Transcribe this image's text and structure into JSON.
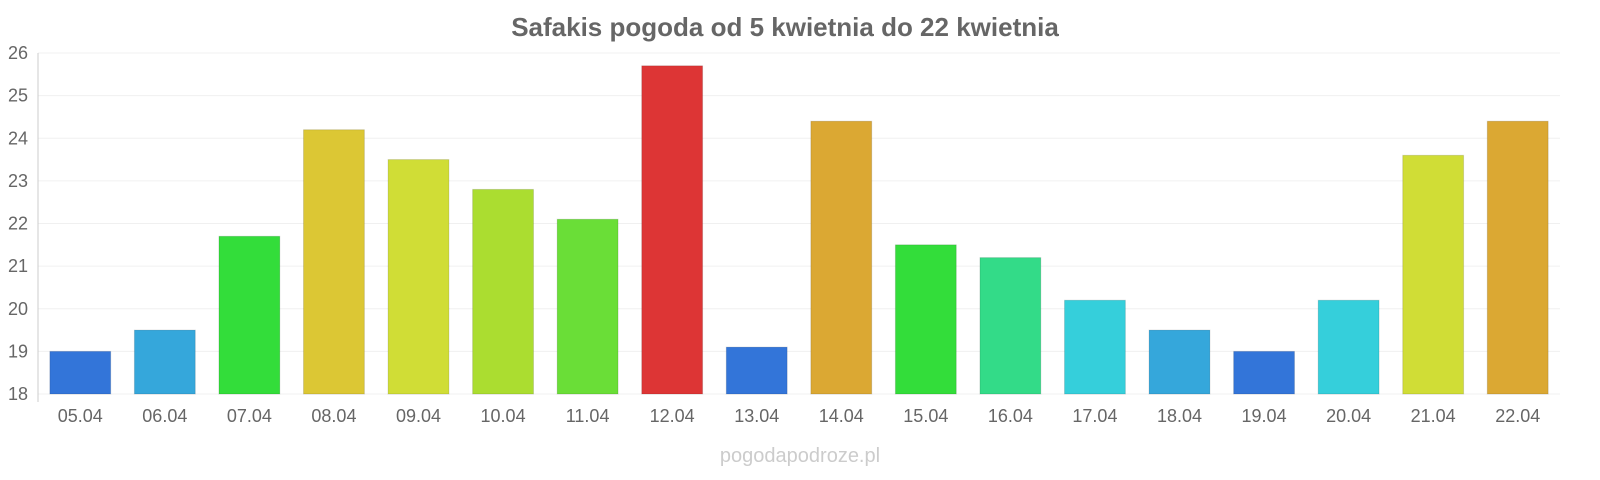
{
  "chart_data": {
    "type": "bar",
    "title": "Safakis pogoda od 5 kwietnia do 22 kwietnia",
    "xlabel": "",
    "ylabel": "",
    "ylim": [
      18,
      26
    ],
    "yticks": [
      18,
      19,
      20,
      21,
      22,
      23,
      24,
      25,
      26
    ],
    "grid": true,
    "categories": [
      "05.04",
      "06.04",
      "07.04",
      "08.04",
      "09.04",
      "10.04",
      "11.04",
      "12.04",
      "13.04",
      "14.04",
      "15.04",
      "16.04",
      "17.04",
      "18.04",
      "19.04",
      "20.04",
      "21.04",
      "22.04"
    ],
    "values": [
      19.0,
      19.5,
      21.7,
      24.2,
      23.5,
      22.8,
      22.1,
      25.7,
      19.1,
      24.4,
      21.5,
      21.2,
      20.2,
      19.5,
      19.0,
      20.2,
      23.6,
      24.4
    ],
    "colors": [
      "#3375d9",
      "#35a7db",
      "#33dd3a",
      "#dcc734",
      "#d0dd36",
      "#abdd30",
      "#6ade37",
      "#dd3535",
      "#3375d9",
      "#dba833",
      "#33dd3a",
      "#33db88",
      "#35cfdb",
      "#35a7db",
      "#3375d9",
      "#35cfdb",
      "#d0dd36",
      "#dba833"
    ]
  },
  "watermark": "pogodapodroze.pl"
}
